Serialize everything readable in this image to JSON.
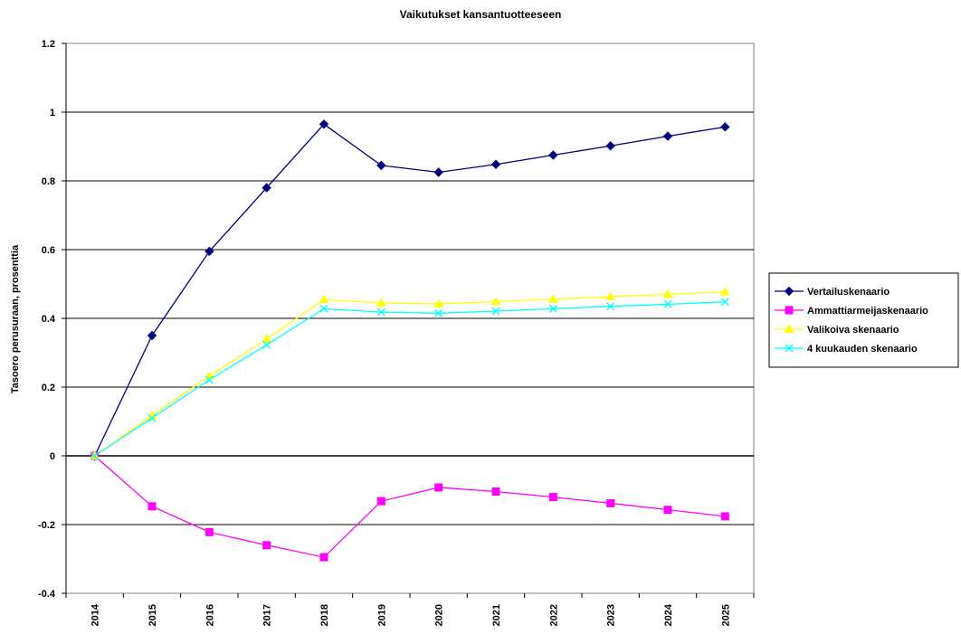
{
  "chart_data": {
    "type": "line",
    "title": "Vaikutukset kansantuotteeseen",
    "xlabel": "",
    "ylabel": "Tasoero perusuraan, prosenttia",
    "categories": [
      "2014",
      "2015",
      "2016",
      "2017",
      "2018",
      "2019",
      "2020",
      "2021",
      "2022",
      "2023",
      "2024",
      "2025"
    ],
    "ylim": [
      -0.4,
      1.2
    ],
    "yticks": [
      -0.4,
      -0.2,
      0,
      0.2,
      0.4,
      0.6,
      0.8,
      1,
      1.2
    ],
    "ytick_labels": [
      "-0.4",
      "-0.2",
      "0",
      "0.2",
      "0.4",
      "0.6",
      "0.8",
      "1",
      "1.2"
    ],
    "grid": true,
    "legend_position": "right",
    "series": [
      {
        "name": "Vertailuskenaario",
        "color": "#000080",
        "marker": "diamond",
        "values": [
          0,
          0.35,
          0.595,
          0.78,
          0.965,
          0.845,
          0.825,
          0.848,
          0.875,
          0.902,
          0.93,
          0.957
        ]
      },
      {
        "name": "Ammattiarmeijaskenaario",
        "color": "#FF00FF",
        "marker": "square",
        "values": [
          0,
          -0.147,
          -0.222,
          -0.26,
          -0.295,
          -0.132,
          -0.092,
          -0.104,
          -0.12,
          -0.138,
          -0.157,
          -0.176
        ]
      },
      {
        "name": "Valikoiva skenaario",
        "color": "#FFFF00",
        "marker": "triangle",
        "values": [
          0,
          0.117,
          0.232,
          0.34,
          0.455,
          0.445,
          0.442,
          0.449,
          0.456,
          0.463,
          0.47,
          0.477
        ]
      },
      {
        "name": "4 kuukauden skenaario",
        "color": "#00FFFF",
        "marker": "x",
        "values": [
          0,
          0.11,
          0.221,
          0.323,
          0.428,
          0.418,
          0.415,
          0.421,
          0.428,
          0.435,
          0.441,
          0.448
        ]
      }
    ]
  }
}
